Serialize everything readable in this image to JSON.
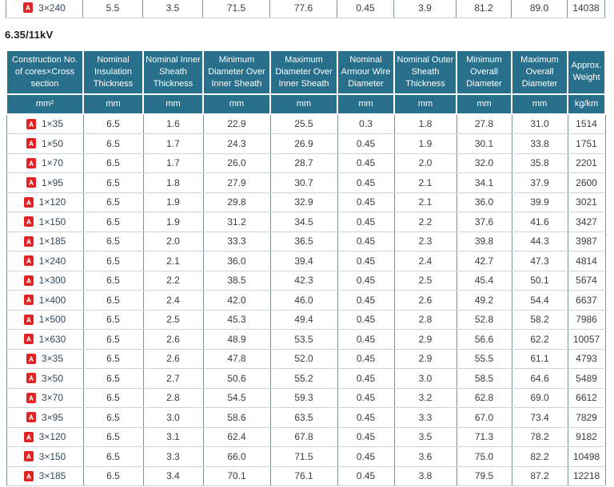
{
  "section_title": "6.35/11kV",
  "prev_row": {
    "construction": "3×240",
    "values": [
      "5.5",
      "3.5",
      "71.5",
      "77.6",
      "0.45",
      "3.9",
      "81.2",
      "89.0",
      "14038"
    ]
  },
  "table": {
    "headers": [
      "Construction No. of cores×Cross section",
      "Nominal Insulation Thickness",
      "Nominal Inner Sheath Thickness",
      "Minimum Diameter Over Inner Sheath",
      "Maximum Diameter Over Inner Sheath",
      "Nominal Armour Wire Diameter",
      "Nominal Outer Sheath Thickness",
      "Minimum Overall Diameter",
      "Maximum Overall Diameter",
      "Approx. Weight"
    ],
    "units": [
      "mm²",
      "mm",
      "mm",
      "mm",
      "mm",
      "mm",
      "mm",
      "mm",
      "mm",
      "kg/km"
    ],
    "rows": [
      {
        "construction": "1×35",
        "values": [
          "6.5",
          "1.6",
          "22.9",
          "25.5",
          "0.3",
          "1.8",
          "27.8",
          "31.0",
          "1514"
        ]
      },
      {
        "construction": "1×50",
        "values": [
          "6.5",
          "1.7",
          "24.3",
          "26.9",
          "0.45",
          "1.9",
          "30.1",
          "33.8",
          "1751"
        ]
      },
      {
        "construction": "1×70",
        "values": [
          "6.5",
          "1.7",
          "26.0",
          "28.7",
          "0.45",
          "2.0",
          "32.0",
          "35.8",
          "2201"
        ]
      },
      {
        "construction": "1×95",
        "values": [
          "6.5",
          "1.8",
          "27.9",
          "30.7",
          "0.45",
          "2.1",
          "34.1",
          "37.9",
          "2600"
        ]
      },
      {
        "construction": "1×120",
        "values": [
          "6.5",
          "1.9",
          "29.8",
          "32.9",
          "0.45",
          "2.1",
          "36.0",
          "39.9",
          "3021"
        ]
      },
      {
        "construction": "1×150",
        "values": [
          "6.5",
          "1.9",
          "31.2",
          "34.5",
          "0.45",
          "2.2",
          "37.6",
          "41.6",
          "3427"
        ]
      },
      {
        "construction": "1×185",
        "values": [
          "6.5",
          "2.0",
          "33.3",
          "36.5",
          "0.45",
          "2.3",
          "39.8",
          "44.3",
          "3987"
        ]
      },
      {
        "construction": "1×240",
        "values": [
          "6.5",
          "2.1",
          "36.0",
          "39.4",
          "0.45",
          "2.4",
          "42.7",
          "47.3",
          "4814"
        ]
      },
      {
        "construction": "1×300",
        "values": [
          "6.5",
          "2.2",
          "38.5",
          "42.3",
          "0.45",
          "2.5",
          "45.4",
          "50.1",
          "5674"
        ]
      },
      {
        "construction": "1×400",
        "values": [
          "6.5",
          "2.4",
          "42.0",
          "46.0",
          "0.45",
          "2.6",
          "49.2",
          "54.4",
          "6637"
        ]
      },
      {
        "construction": "1×500",
        "values": [
          "6.5",
          "2.5",
          "45.3",
          "49.4",
          "0.45",
          "2.8",
          "52.8",
          "58.2",
          "7986"
        ]
      },
      {
        "construction": "1×630",
        "values": [
          "6.5",
          "2.6",
          "48.9",
          "53.5",
          "0.45",
          "2.9",
          "56.6",
          "62.2",
          "10057"
        ]
      },
      {
        "construction": "3×35",
        "values": [
          "6.5",
          "2.6",
          "47.8",
          "52.0",
          "0.45",
          "2.9",
          "55.5",
          "61.1",
          "4793"
        ]
      },
      {
        "construction": "3×50",
        "values": [
          "6.5",
          "2.7",
          "50.6",
          "55.2",
          "0.45",
          "3.0",
          "58.5",
          "64.6",
          "5489"
        ]
      },
      {
        "construction": "3×70",
        "values": [
          "6.5",
          "2.8",
          "54.5",
          "59.3",
          "0.45",
          "3.2",
          "62.8",
          "69.0",
          "6612"
        ]
      },
      {
        "construction": "3×95",
        "values": [
          "6.5",
          "3.0",
          "58.6",
          "63.5",
          "0.45",
          "3.3",
          "67.0",
          "73.4",
          "7829"
        ]
      },
      {
        "construction": "3×120",
        "values": [
          "6.5",
          "3.1",
          "62.4",
          "67.8",
          "0.45",
          "3.5",
          "71.3",
          "78.2",
          "9182"
        ]
      },
      {
        "construction": "3×150",
        "values": [
          "6.5",
          "3.3",
          "66.0",
          "71.5",
          "0.45",
          "3.6",
          "75.0",
          "82.2",
          "10498"
        ]
      },
      {
        "construction": "3×185",
        "values": [
          "6.5",
          "3.4",
          "70.1",
          "76.1",
          "0.45",
          "3.8",
          "79.5",
          "87.2",
          "12218"
        ]
      }
    ]
  },
  "icons": {
    "row_icon": "pdf-icon"
  },
  "colors": {
    "header_bg": "#276f8a",
    "header_text": "#ffffff",
    "pdf_red": "#e12423",
    "construction_text": "#33475b",
    "cell_text": "#3c3c3c",
    "border_vertical": "#7f9096",
    "border_horizontal": "#ccd6da"
  }
}
